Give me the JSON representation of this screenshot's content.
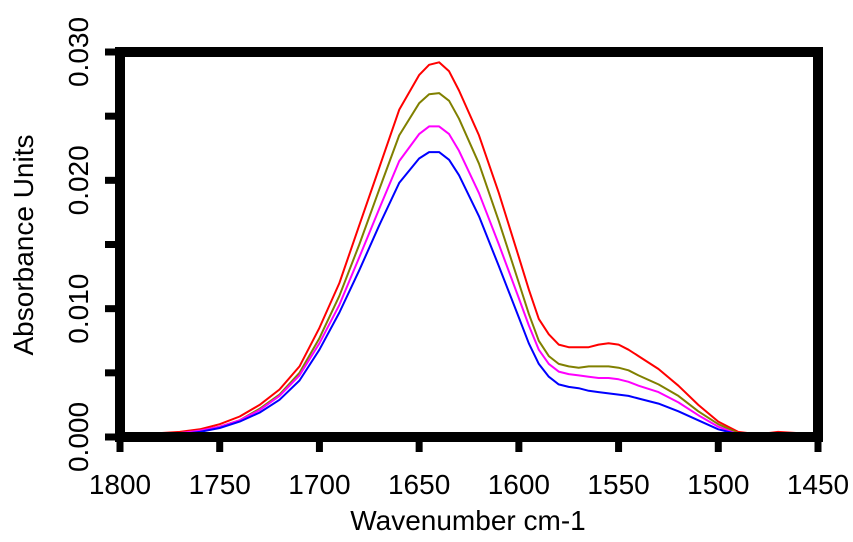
{
  "chart_data": {
    "type": "line",
    "title": "",
    "xlabel": "Wavenumber cm-1",
    "ylabel": "Absorbance Units",
    "xlim": [
      1800,
      1450
    ],
    "ylim": [
      0.0,
      0.03
    ],
    "x_reversed": true,
    "grid": false,
    "legend": "none",
    "x_ticks": [
      1800,
      1750,
      1700,
      1650,
      1600,
      1550,
      1500,
      1450
    ],
    "y_ticks": [
      0.0,
      0.005,
      0.01,
      0.015,
      0.02,
      0.025,
      0.03
    ],
    "x_tick_labels": [
      "1800",
      "1750",
      "1700",
      "1650",
      "1600",
      "1550",
      "1500",
      "1450"
    ],
    "y_tick_labels": [
      "0.000",
      "0.010",
      "0.020",
      "0.030"
    ],
    "y_tick_labels_at": [
      0.0,
      0.01,
      0.02,
      0.03
    ],
    "series": [
      {
        "color": "#ff0000",
        "x": [
          1795,
          1780,
          1770,
          1760,
          1750,
          1740,
          1730,
          1720,
          1710,
          1700,
          1690,
          1680,
          1670,
          1660,
          1650,
          1645,
          1640,
          1635,
          1630,
          1620,
          1610,
          1600,
          1595,
          1590,
          1585,
          1580,
          1575,
          1570,
          1565,
          1560,
          1555,
          1550,
          1545,
          1540,
          1530,
          1520,
          1510,
          1500,
          1490,
          1480,
          1470,
          1460,
          1452
        ],
        "y": [
          0.0003,
          0.0003,
          0.0004,
          0.0006,
          0.001,
          0.0016,
          0.0025,
          0.0037,
          0.0055,
          0.0085,
          0.012,
          0.0165,
          0.021,
          0.0255,
          0.0282,
          0.029,
          0.0292,
          0.0285,
          0.027,
          0.0235,
          0.019,
          0.014,
          0.0115,
          0.0092,
          0.008,
          0.0072,
          0.007,
          0.007,
          0.007,
          0.0072,
          0.0073,
          0.0072,
          0.0068,
          0.0063,
          0.0053,
          0.004,
          0.0025,
          0.0012,
          0.0004,
          0.0002,
          0.0004,
          0.0003,
          0.0003
        ]
      },
      {
        "color": "#808000",
        "x": [
          1795,
          1780,
          1770,
          1760,
          1750,
          1740,
          1730,
          1720,
          1710,
          1700,
          1690,
          1680,
          1670,
          1660,
          1650,
          1645,
          1640,
          1635,
          1630,
          1620,
          1610,
          1600,
          1595,
          1590,
          1585,
          1580,
          1575,
          1570,
          1565,
          1560,
          1555,
          1550,
          1545,
          1540,
          1530,
          1520,
          1510,
          1500,
          1490,
          1480,
          1470,
          1460,
          1452
        ],
        "y": [
          0.0001,
          0.0002,
          0.0003,
          0.0005,
          0.0008,
          0.0013,
          0.0022,
          0.0033,
          0.005,
          0.0077,
          0.011,
          0.015,
          0.0193,
          0.0235,
          0.026,
          0.0267,
          0.0268,
          0.0262,
          0.0248,
          0.0213,
          0.0168,
          0.012,
          0.0096,
          0.0075,
          0.0063,
          0.0057,
          0.0055,
          0.0054,
          0.0055,
          0.0055,
          0.0055,
          0.0054,
          0.0052,
          0.0048,
          0.0041,
          0.0032,
          0.002,
          0.001,
          0.0003,
          0.0002,
          0.0003,
          0.0002,
          0.0002
        ]
      },
      {
        "color": "#ff00ff",
        "x": [
          1795,
          1780,
          1770,
          1760,
          1750,
          1740,
          1730,
          1720,
          1710,
          1700,
          1690,
          1680,
          1670,
          1660,
          1650,
          1645,
          1640,
          1635,
          1630,
          1620,
          1610,
          1600,
          1595,
          1590,
          1585,
          1580,
          1575,
          1570,
          1565,
          1560,
          1555,
          1550,
          1545,
          1540,
          1530,
          1520,
          1510,
          1500,
          1490,
          1480,
          1470,
          1460,
          1452
        ],
        "y": [
          0.0001,
          0.0002,
          0.0003,
          0.0005,
          0.0008,
          0.0013,
          0.0021,
          0.0032,
          0.0048,
          0.0073,
          0.0103,
          0.014,
          0.0178,
          0.0215,
          0.0236,
          0.0242,
          0.0242,
          0.0236,
          0.0223,
          0.019,
          0.015,
          0.0108,
          0.0087,
          0.0068,
          0.0057,
          0.0051,
          0.0049,
          0.0048,
          0.0047,
          0.0046,
          0.0046,
          0.0045,
          0.0043,
          0.004,
          0.0035,
          0.0027,
          0.0017,
          0.0008,
          0.0002,
          0.0001,
          0.0002,
          0.0001,
          0.0001
        ]
      },
      {
        "color": "#0000ff",
        "x": [
          1795,
          1780,
          1770,
          1760,
          1750,
          1740,
          1730,
          1720,
          1710,
          1700,
          1690,
          1680,
          1670,
          1660,
          1650,
          1645,
          1640,
          1635,
          1630,
          1620,
          1610,
          1600,
          1595,
          1590,
          1585,
          1580,
          1575,
          1570,
          1565,
          1560,
          1555,
          1550,
          1545,
          1540,
          1530,
          1520,
          1510,
          1500,
          1490,
          1480,
          1470,
          1460,
          1452
        ],
        "y": [
          0.0,
          0.0001,
          0.0002,
          0.0004,
          0.0007,
          0.0012,
          0.0019,
          0.0029,
          0.0044,
          0.0068,
          0.0097,
          0.013,
          0.0165,
          0.0198,
          0.0217,
          0.0222,
          0.0222,
          0.0216,
          0.0204,
          0.0172,
          0.0133,
          0.0093,
          0.0073,
          0.0057,
          0.0047,
          0.0041,
          0.0039,
          0.0038,
          0.0036,
          0.0035,
          0.0034,
          0.0033,
          0.0032,
          0.003,
          0.0026,
          0.002,
          0.0013,
          0.0006,
          0.0002,
          0.0001,
          0.0001,
          0.0001,
          0.0001
        ]
      }
    ]
  }
}
